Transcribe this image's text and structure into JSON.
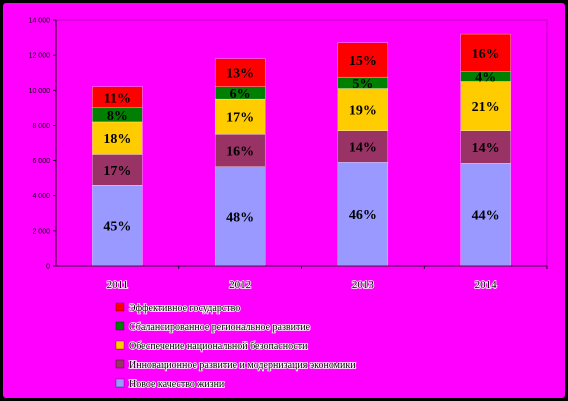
{
  "chart_data": {
    "type": "bar",
    "stacked": true,
    "categories": [
      "2011",
      "2012",
      "2013",
      "2014"
    ],
    "ylim": [
      0,
      14000
    ],
    "y_ticks": [
      0,
      2000,
      4000,
      6000,
      8000,
      10000,
      12000,
      14000
    ],
    "y_tick_labels": [
      "0",
      "2 000",
      "4 000",
      "6 000",
      "8 000",
      "10 000",
      "12 000",
      "14 000"
    ],
    "grid": false,
    "legend_position": "bottom",
    "series": [
      {
        "name": "Новое качество жизни",
        "color": "#9999ff",
        "values": [
          4600,
          5650,
          5900,
          5850
        ],
        "labels": [
          "45%",
          "48%",
          "46%",
          "44%"
        ]
      },
      {
        "name": "Инновационное развитие и модернизация экономики",
        "color": "#993366",
        "values": [
          1750,
          1850,
          1800,
          1850
        ],
        "labels": [
          "17%",
          "16%",
          "14%",
          "14%"
        ]
      },
      {
        "name": "Обеспечение национальной безопасности",
        "color": "#ffcc00",
        "values": [
          1850,
          2000,
          2400,
          2800
        ],
        "labels": [
          "18%",
          "17%",
          "19%",
          "21%"
        ]
      },
      {
        "name": "Сбалансированное региональное развитие",
        "color": "#008000",
        "values": [
          800,
          700,
          650,
          550
        ],
        "labels": [
          "8%",
          "6%",
          "5%",
          "4%"
        ]
      },
      {
        "name": "Эффективное государство",
        "color": "#ff0000",
        "values": [
          1200,
          1600,
          1950,
          2150
        ],
        "labels": [
          "11%",
          "13%",
          "15%",
          "16%"
        ]
      }
    ]
  }
}
